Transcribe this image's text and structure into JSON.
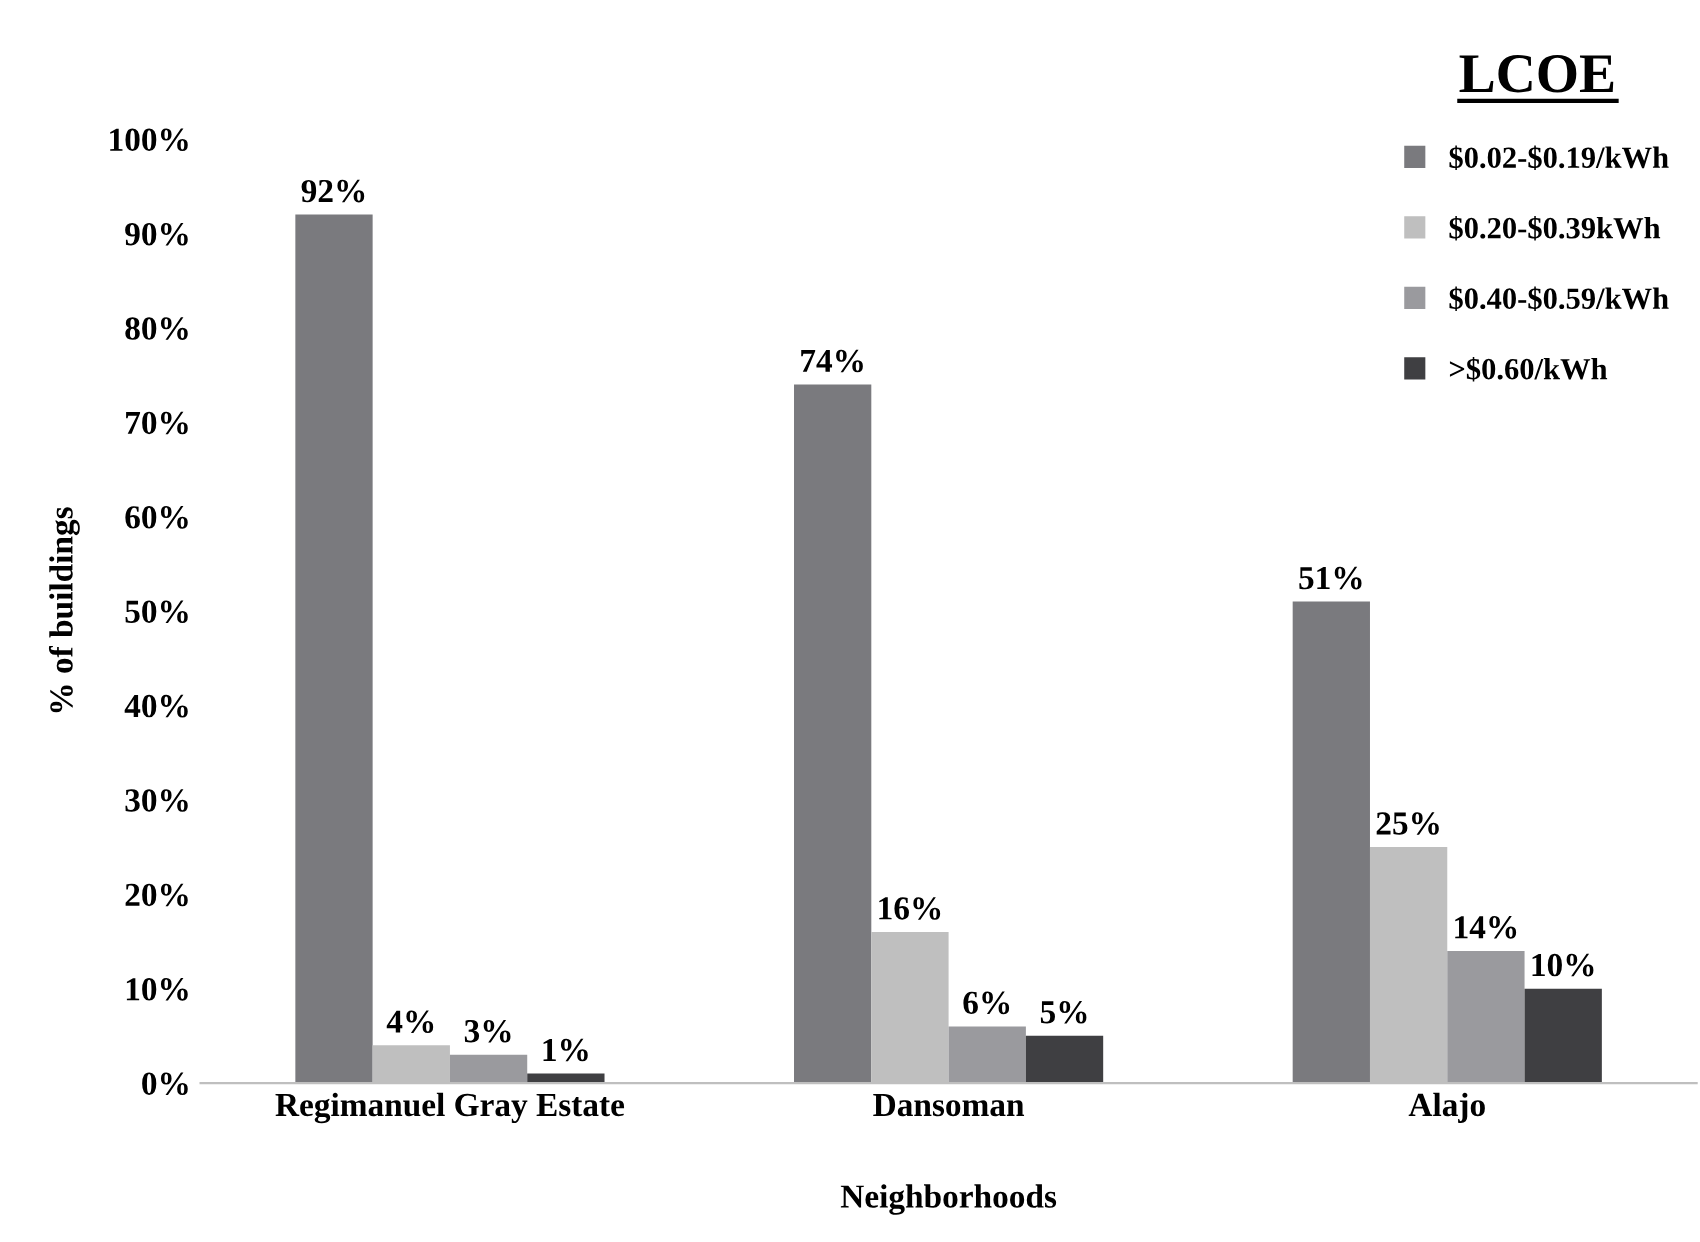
{
  "chart_data": {
    "type": "bar",
    "xlabel": "Neighborhoods",
    "ylabel": "% of buildings",
    "legend_title": "LCOE",
    "categories": [
      "Regimanuel Gray Estate",
      "Dansoman",
      "Alajo"
    ],
    "series": [
      {
        "name": "$0.02-$0.19/kWh",
        "color": "#7a7a7e",
        "values": [
          92,
          74,
          51
        ],
        "value_labels": [
          "92%",
          "74%",
          "51%"
        ]
      },
      {
        "name": "$0.20-$0.39kWh",
        "color": "#bfbfbf",
        "values": [
          4,
          16,
          25
        ],
        "value_labels": [
          "4%",
          "16%",
          "25%"
        ]
      },
      {
        "name": "$0.40-$0.59/kWh",
        "color": "#9a9a9e",
        "values": [
          3,
          6,
          14
        ],
        "value_labels": [
          "3%",
          "6%",
          "14%"
        ]
      },
      {
        "name": ">$0.60/kWh",
        "color": "#3f3f42",
        "values": [
          1,
          5,
          10
        ],
        "value_labels": [
          "1%",
          "5%",
          "10%"
        ]
      }
    ],
    "ylim": [
      0,
      100
    ],
    "yticks": [
      {
        "value": 0,
        "label": "0%"
      },
      {
        "value": 10,
        "label": "10%"
      },
      {
        "value": 20,
        "label": "20%"
      },
      {
        "value": 30,
        "label": "30%"
      },
      {
        "value": 40,
        "label": "40%"
      },
      {
        "value": 50,
        "label": "50%"
      },
      {
        "value": 60,
        "label": "60%"
      },
      {
        "value": 70,
        "label": "70%"
      },
      {
        "value": 80,
        "label": "80%"
      },
      {
        "value": 90,
        "label": "90%"
      },
      {
        "value": 100,
        "label": "100%"
      }
    ],
    "grid": false,
    "legend": "top right"
  }
}
